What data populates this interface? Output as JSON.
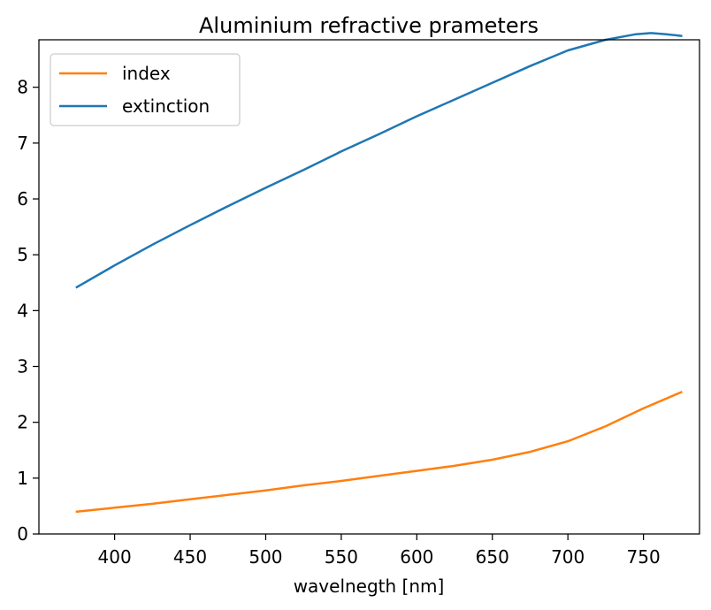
{
  "chart_data": {
    "type": "line",
    "title": "Aluminium refractive prameters",
    "xlabel": "wavelnegth [nm]",
    "ylabel": "",
    "xlim": [
      349.9,
      787.1
    ],
    "ylim": [
      0,
      8.85
    ],
    "xticks": [
      400,
      450,
      500,
      550,
      600,
      650,
      700,
      750
    ],
    "yticks": [
      0,
      1,
      2,
      3,
      4,
      5,
      6,
      7,
      8
    ],
    "grid": false,
    "legend": "upper left",
    "series": [
      {
        "name": "index",
        "color": "#ff7f0e",
        "x": [
          375,
          400,
          425,
          450,
          475,
          500,
          525,
          550,
          575,
          600,
          625,
          650,
          675,
          700,
          725,
          750,
          775
        ],
        "y": [
          0.4,
          0.47,
          0.54,
          0.62,
          0.7,
          0.78,
          0.87,
          0.95,
          1.04,
          1.13,
          1.22,
          1.33,
          1.47,
          1.66,
          1.93,
          2.25,
          2.54
        ]
      },
      {
        "name": "extinction",
        "color": "#1f77b4",
        "x": [
          375,
          400,
          425,
          450,
          475,
          500,
          525,
          550,
          575,
          600,
          625,
          650,
          675,
          700,
          725,
          745,
          755,
          765,
          775
        ],
        "y": [
          4.42,
          4.81,
          5.18,
          5.53,
          5.87,
          6.2,
          6.52,
          6.85,
          7.16,
          7.48,
          7.78,
          8.08,
          8.38,
          8.66,
          8.85,
          8.95,
          8.97,
          8.95,
          8.92
        ]
      }
    ]
  }
}
